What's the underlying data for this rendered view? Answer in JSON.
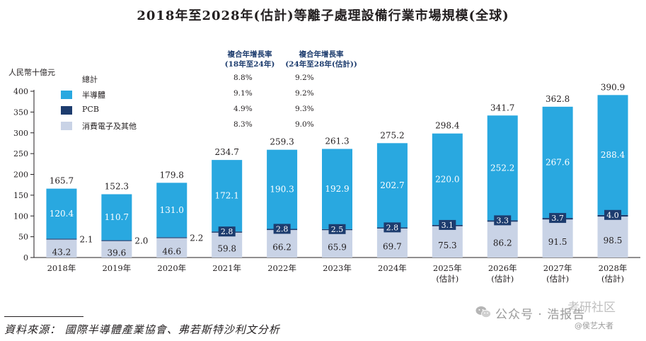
{
  "chart_data": {
    "type": "bar",
    "stacked": true,
    "title": "2018年至2028年(估計)等離子處理設備行業市場規模(全球)",
    "ylabel": "人民幣十億元",
    "ylim": [
      0,
      400
    ],
    "yticks": [
      0,
      50,
      100,
      150,
      200,
      250,
      300,
      350,
      400
    ],
    "categories": [
      "2018年",
      "2019年",
      "2020年",
      "2021年",
      "2022年",
      "2023年",
      "2024年",
      "2025年",
      "2026年",
      "2027年",
      "2028年"
    ],
    "category_sublabels": [
      "",
      "",
      "",
      "",
      "",
      "",
      "",
      "(估計)",
      "(估計)",
      "(估計)",
      "(估計)"
    ],
    "series": [
      {
        "name": "消費電子及其他",
        "color": "#c9d3e6",
        "values": [
          43.2,
          39.6,
          46.6,
          59.8,
          66.2,
          65.9,
          69.7,
          75.3,
          86.2,
          91.5,
          98.5
        ]
      },
      {
        "name": "PCB",
        "color": "#1d3c6e",
        "values": [
          2.1,
          2.0,
          2.2,
          2.8,
          2.8,
          2.5,
          2.8,
          3.1,
          3.3,
          3.7,
          4.0
        ]
      },
      {
        "name": "半導體",
        "color": "#29a8e0",
        "values": [
          120.4,
          110.7,
          131.0,
          172.1,
          190.3,
          192.9,
          202.7,
          220.0,
          252.2,
          267.6,
          288.4
        ]
      }
    ],
    "totals": [
      165.7,
      152.3,
      179.8,
      234.7,
      259.3,
      261.3,
      275.2,
      298.4,
      341.7,
      362.8,
      390.9
    ],
    "legend": {
      "total_label": "總計",
      "items": [
        {
          "label": "半導體",
          "color": "#29a8e0"
        },
        {
          "label": "PCB",
          "color": "#1d3c6e"
        },
        {
          "label": "消費電子及其他",
          "color": "#c9d3e6"
        }
      ]
    },
    "cagr": {
      "headers": [
        {
          "line1": "複合年增長率",
          "line2": "(18年至24年)"
        },
        {
          "line1": "複合年增長率",
          "line2": "(24年至28年(估計))"
        }
      ],
      "rows": [
        {
          "name": "總計",
          "values": [
            "8.8%",
            "9.2%"
          ]
        },
        {
          "name": "半導體",
          "values": [
            "9.1%",
            "9.2%"
          ]
        },
        {
          "name": "PCB",
          "values": [
            "4.9%",
            "9.3%"
          ]
        },
        {
          "name": "消費電子及其他",
          "values": [
            "8.3%",
            "9.0%"
          ]
        }
      ]
    }
  },
  "source": "資料來源： 國際半導體產業協會、弗若斯特沙利文分析",
  "watermark": {
    "text": "公众号 · 浩报告",
    "text2": "考研社区",
    "text3": "@侯艺大者"
  }
}
